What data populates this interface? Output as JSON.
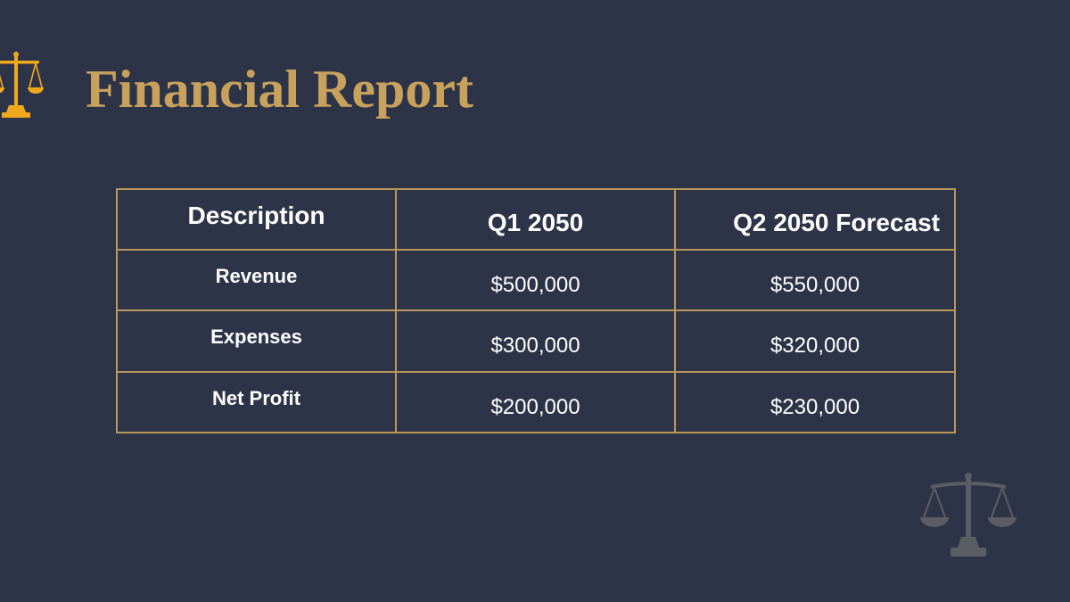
{
  "header": {
    "title": "Financial Report",
    "logo_icon": "scales-of-justice-icon"
  },
  "table": {
    "columns": [
      "Description",
      "Q1 2050",
      "Q2 2050 Forecast"
    ],
    "rows": [
      {
        "label": "Revenue",
        "q1": "$500,000",
        "q2": "$550,000"
      },
      {
        "label": "Expenses",
        "q1": "$300,000",
        "q2": "$320,000"
      },
      {
        "label": "Net Profit",
        "q1": "$200,000",
        "q2": "$230,000"
      }
    ]
  },
  "decoration": {
    "watermark_icon": "scales-of-justice-icon"
  },
  "colors": {
    "background": "#2e3448",
    "title": "#c8a25d",
    "border": "#b8975a",
    "logo": "#f0a81c",
    "watermark": "#5b5d64"
  }
}
